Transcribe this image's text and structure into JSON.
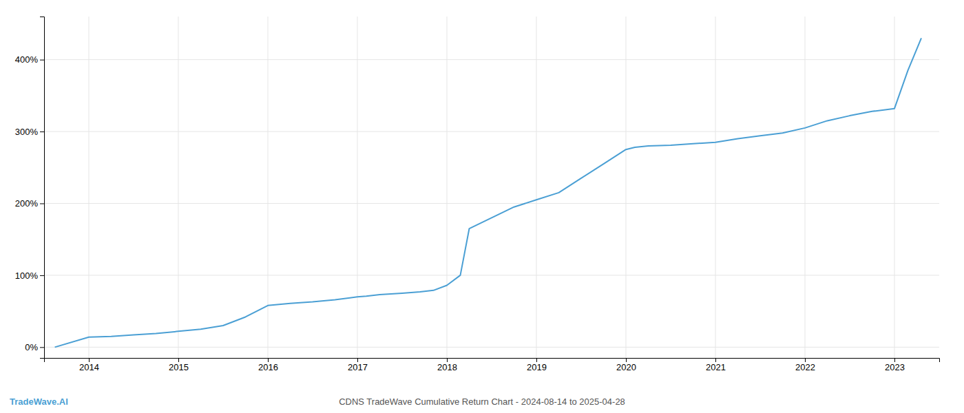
{
  "chart_data": {
    "type": "line",
    "title": "CDNS TradeWave Cumulative Return Chart - 2024-08-14 to 2025-04-28",
    "annotations": [
      {
        "text": "TradeWave.AI",
        "color": "#4a9fd4"
      }
    ],
    "color": "#4a9fd4",
    "grid": true,
    "x": [
      2013.62,
      2014.0,
      2014.25,
      2014.5,
      2014.75,
      2015.0,
      2015.25,
      2015.5,
      2015.75,
      2016.0,
      2016.25,
      2016.5,
      2016.75,
      2017.0,
      2017.1,
      2017.25,
      2017.5,
      2017.7,
      2017.85,
      2018.0,
      2018.15,
      2018.25,
      2018.5,
      2018.75,
      2019.0,
      2019.25,
      2019.5,
      2019.75,
      2020.0,
      2020.1,
      2020.25,
      2020.5,
      2020.75,
      2021.0,
      2021.25,
      2021.5,
      2021.75,
      2022.0,
      2022.25,
      2022.5,
      2022.75,
      2023.0,
      2023.15,
      2023.3
    ],
    "values": [
      0,
      14,
      15,
      17,
      19,
      22,
      25,
      30,
      42,
      58,
      61,
      63,
      66,
      70,
      71,
      73,
      75,
      77,
      79,
      86,
      100,
      165,
      180,
      195,
      205,
      215,
      235,
      255,
      275,
      278,
      280,
      281,
      283,
      285,
      290,
      294,
      298,
      305,
      315,
      322,
      328,
      332,
      385,
      430
    ],
    "xlim": [
      2013.5,
      2023.5
    ],
    "ylim": [
      -15,
      460
    ],
    "xticks": [
      2014,
      2015,
      2016,
      2017,
      2018,
      2019,
      2020,
      2021,
      2022,
      2023
    ],
    "yticks": [
      {
        "value": 0,
        "label": "0%"
      },
      {
        "value": 100,
        "label": "100%"
      },
      {
        "value": 200,
        "label": "200%"
      },
      {
        "value": 300,
        "label": "300%"
      },
      {
        "value": 400,
        "label": "400%"
      }
    ]
  }
}
